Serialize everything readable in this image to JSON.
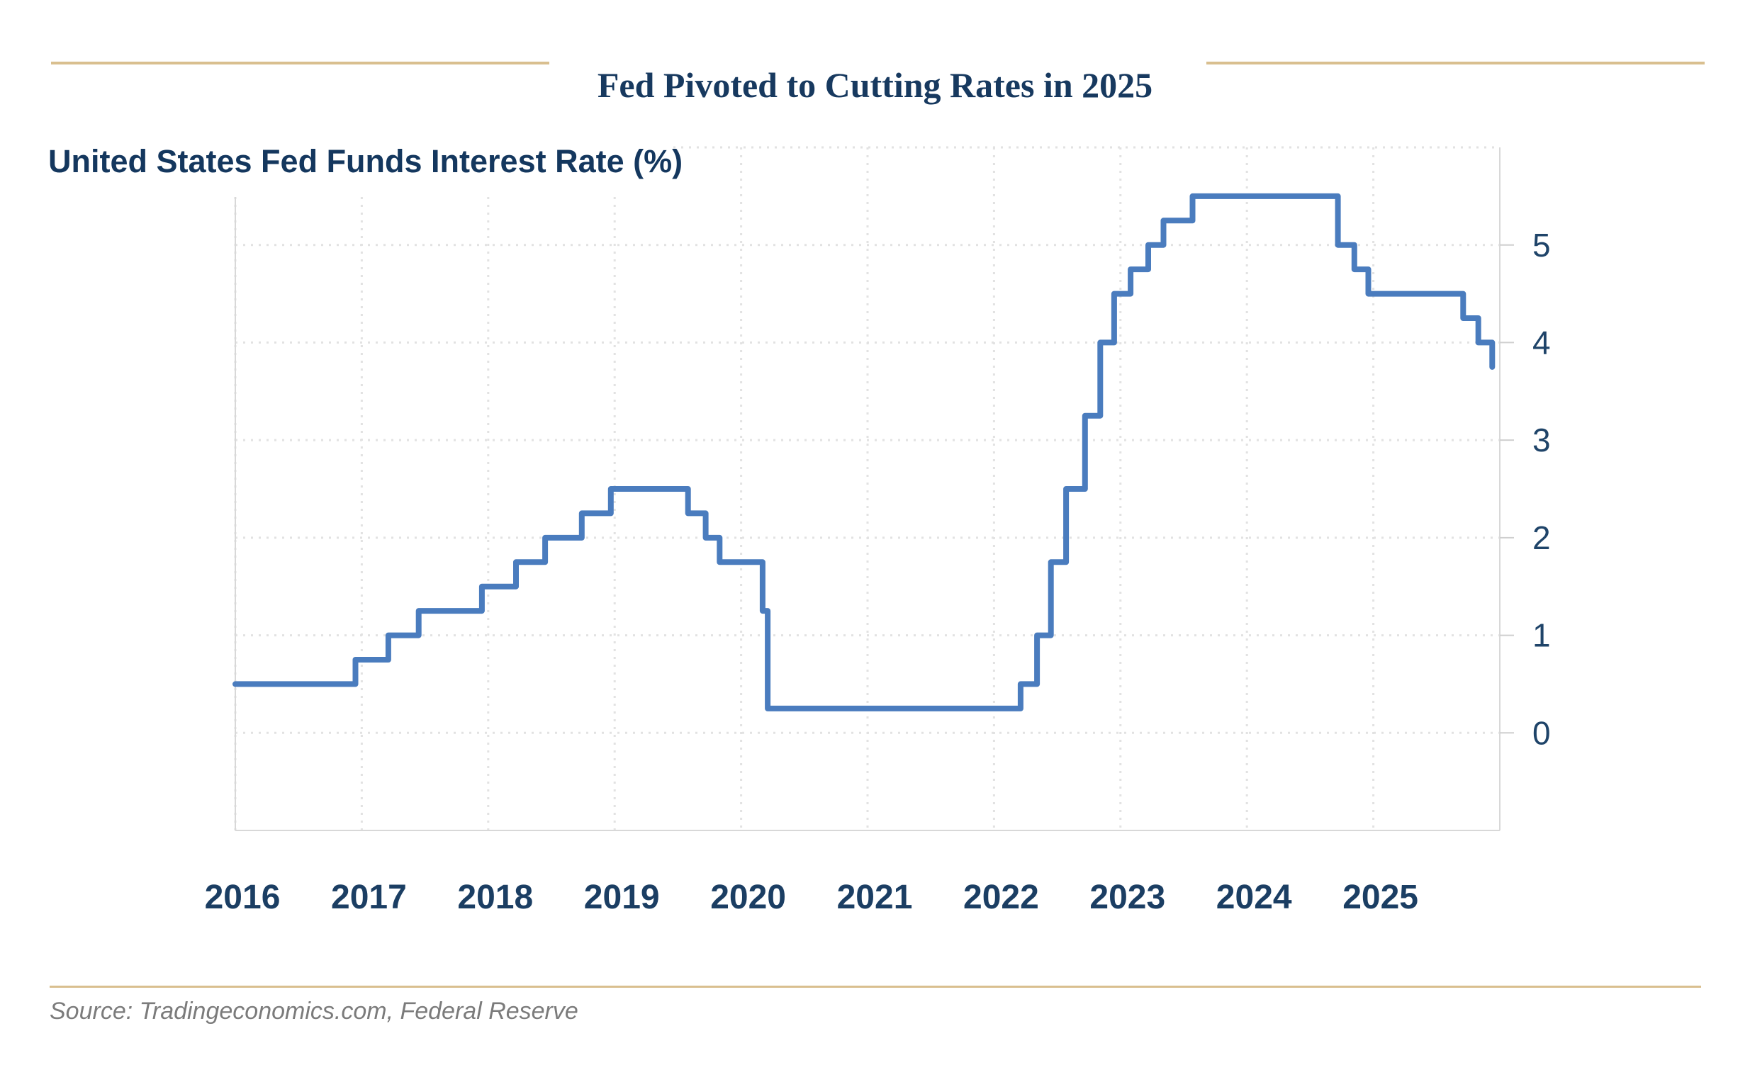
{
  "header": {
    "title": "Fed Pivoted to Cutting Rates in 2025",
    "title_color": "#17395f",
    "accent_color": "#d9bf8f"
  },
  "chart": {
    "subtitle": "United States Fed Funds Interest Rate (%)"
  },
  "chart_data": {
    "type": "line",
    "line_style": "step-after",
    "title": "Fed Pivoted to Cutting Rates in 2025",
    "series_name": "United States Fed Funds Interest Rate (%)",
    "xlabel": "",
    "ylabel": "United States Fed Funds Interest Rate (%)",
    "x_domain": [
      2016,
      2026
    ],
    "y_domain": [
      -1,
      6
    ],
    "x_ticks": [
      2016,
      2017,
      2018,
      2019,
      2020,
      2021,
      2022,
      2023,
      2024,
      2025
    ],
    "y_ticks": [
      0,
      1,
      2,
      3,
      4,
      5
    ],
    "grid": "dotted",
    "legend": "none",
    "line_color": "#4a7cbe",
    "grid_color": "#e2e2e2",
    "axis_color": "#d8d8d8",
    "tick_label_color": "#1f4469",
    "series": [
      {
        "name": "Fed Funds Interest Rate (%)",
        "points": [
          [
            2016.0,
            0.5
          ],
          [
            2016.95,
            0.75
          ],
          [
            2017.21,
            1.0
          ],
          [
            2017.45,
            1.25
          ],
          [
            2017.95,
            1.5
          ],
          [
            2018.22,
            1.75
          ],
          [
            2018.45,
            2.0
          ],
          [
            2018.74,
            2.25
          ],
          [
            2018.97,
            2.5
          ],
          [
            2019.58,
            2.25
          ],
          [
            2019.72,
            2.0
          ],
          [
            2019.83,
            1.75
          ],
          [
            2020.17,
            1.25
          ],
          [
            2020.21,
            0.25
          ],
          [
            2022.21,
            0.5
          ],
          [
            2022.34,
            1.0
          ],
          [
            2022.45,
            1.75
          ],
          [
            2022.57,
            2.5
          ],
          [
            2022.72,
            3.25
          ],
          [
            2022.84,
            4.0
          ],
          [
            2022.95,
            4.5
          ],
          [
            2023.08,
            4.75
          ],
          [
            2023.22,
            5.0
          ],
          [
            2023.34,
            5.25
          ],
          [
            2023.57,
            5.5
          ],
          [
            2024.72,
            5.0
          ],
          [
            2024.85,
            4.75
          ],
          [
            2024.96,
            4.5
          ],
          [
            2025.71,
            4.25
          ],
          [
            2025.83,
            4.0
          ],
          [
            2025.94,
            3.75
          ]
        ]
      }
    ]
  },
  "footer": {
    "source": "Source: Tradingeconomics.com, Federal Reserve"
  }
}
